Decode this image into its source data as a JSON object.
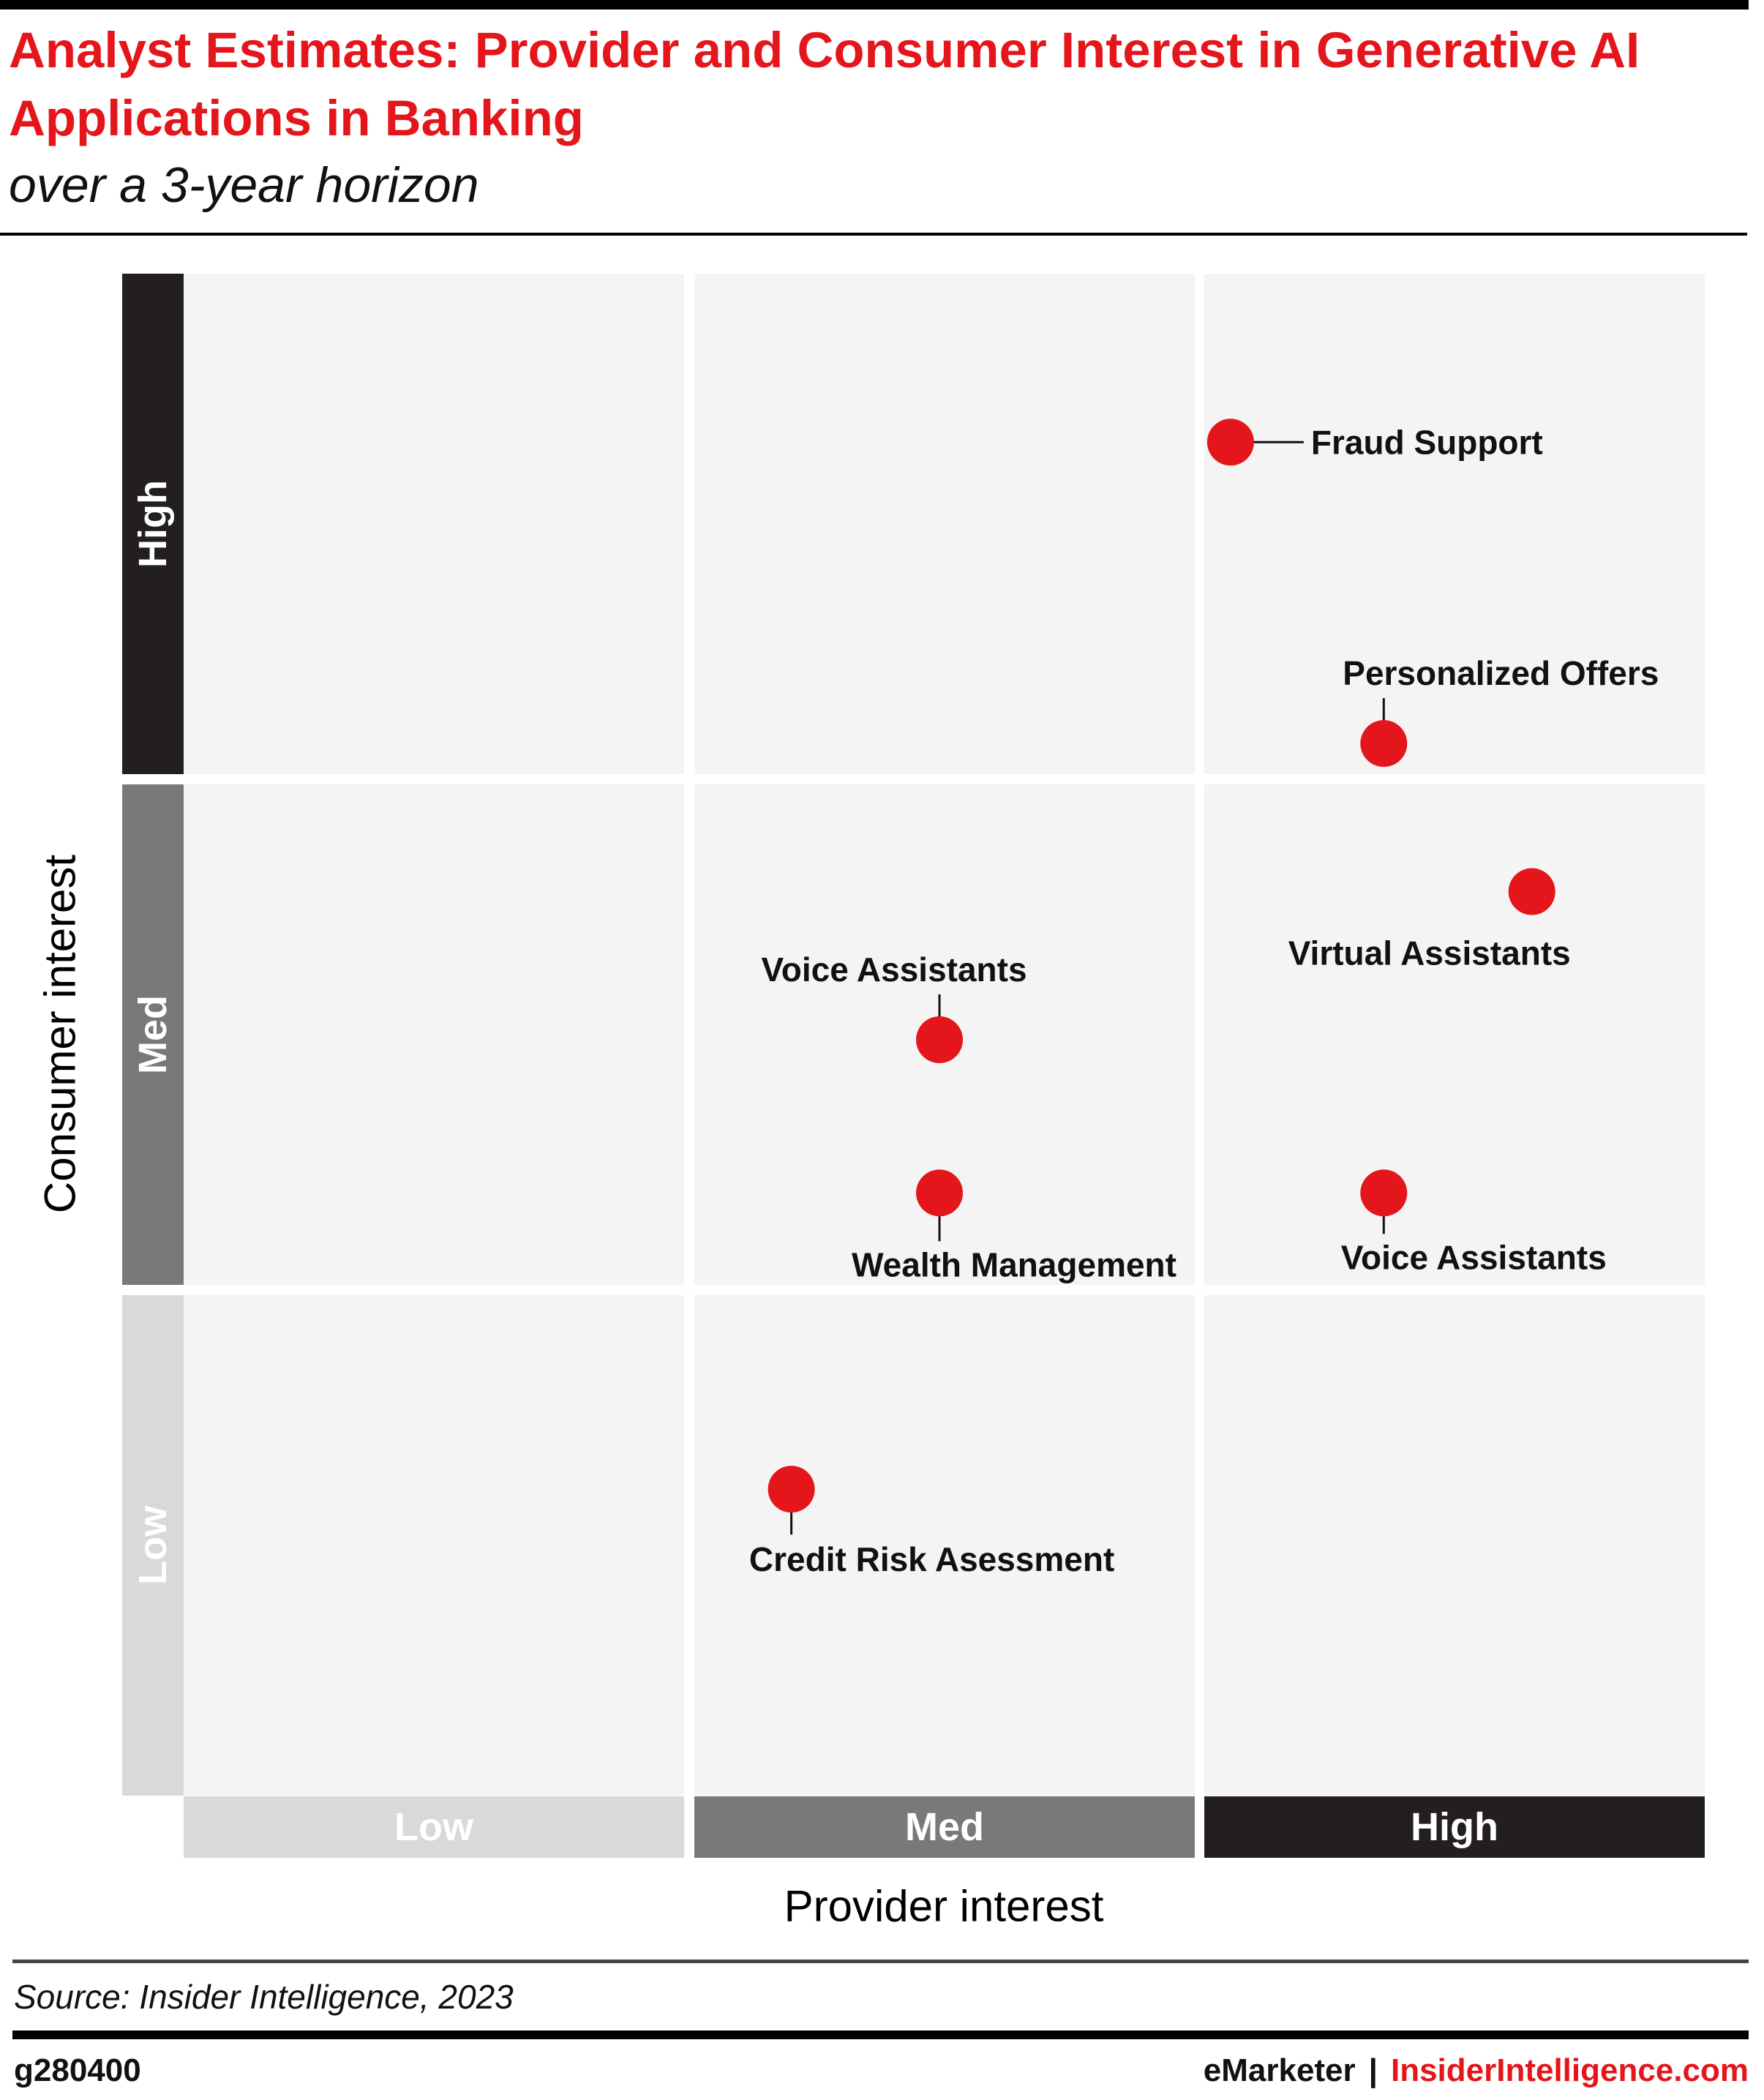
{
  "header": {
    "title": "Analyst Estimates: Provider and Consumer Interest in Generative AI Applications in Banking",
    "subtitle": "over a 3-year horizon"
  },
  "chart_data": {
    "type": "scatter",
    "xlabel": "Provider interest",
    "ylabel": "Consumer interest",
    "x_levels": [
      "Low",
      "Med",
      "High"
    ],
    "y_levels": [
      "High",
      "Med",
      "Low"
    ],
    "xlim": [
      0,
      3
    ],
    "ylim": [
      0,
      3
    ],
    "grid": true,
    "marker_color": "#e4161b",
    "points": [
      {
        "label": "Fraud Support",
        "x": 2.05,
        "y": 2.65
      },
      {
        "label": "Personalized Offers",
        "x": 2.35,
        "y": 2.06
      },
      {
        "label": "Virtual Assistants",
        "x": 2.64,
        "y": 1.77
      },
      {
        "label": "Voice Assistants",
        "x": 1.48,
        "y": 1.48
      },
      {
        "label": "Wealth Management",
        "x": 1.48,
        "y": 1.18
      },
      {
        "label": "Voice Assistants",
        "x": 2.35,
        "y": 1.18
      },
      {
        "label": "Credit Risk Asessment",
        "x": 1.19,
        "y": 0.6
      }
    ]
  },
  "footer": {
    "source": "Source: Insider Intelligence, 2023",
    "chart_id": "g280400",
    "brand_emarketer": "eMarketer",
    "brand_separator": "|",
    "brand_ii": "InsiderIntelligence.com"
  }
}
